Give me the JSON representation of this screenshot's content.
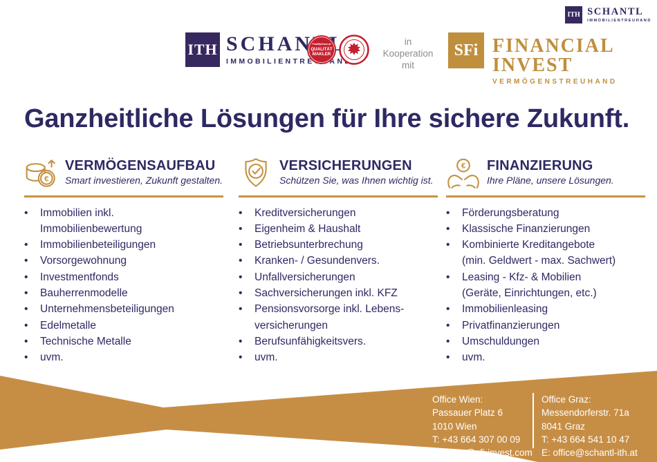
{
  "brand": {
    "ith_monogram": "ITH",
    "schantl_name": "SCHANTL",
    "schantl_sub": "IMMOBILIENTREUHAND",
    "cooperation_line1": "in",
    "cooperation_line2": "Kooperation",
    "cooperation_line3": "mit",
    "sfi_monogram": "SFi",
    "sfi_name": "FINANCIAL INVEST",
    "sfi_sub": "VERMÖGENSTREUHAND"
  },
  "badges": {
    "quality_line1": "FindMyHome.at",
    "quality_line2": "QUALITÄT",
    "quality_line3": "MAKLER"
  },
  "title": "Ganzheitliche Lösungen für Ihre sichere Zukunft.",
  "icons": {
    "euro": "€"
  },
  "columns": [
    {
      "title": "VERMÖGENSAUFBAU",
      "subtitle": "Smart investieren, Zukunft gestalten.",
      "icon": "coins-growth-icon",
      "items": [
        "Immobilien inkl.\nImmobilienbewertung",
        "Immobilienbeteiligungen",
        "Vorsorgewohnung",
        "Investmentfonds",
        "Bauherrenmodelle",
        "Unternehmensbeteiligungen",
        "Edelmetalle",
        "Technische Metalle",
        "uvm."
      ]
    },
    {
      "title": "VERSICHERUNGEN",
      "subtitle": "Schützen Sie, was Ihnen wichtig ist.",
      "icon": "shield-check-icon",
      "items": [
        "Kreditversicherungen",
        "Eigenheim & Haushalt",
        "Betriebsunterbrechung",
        "Kranken- / Gesundenvers.",
        "Unfallversicherungen",
        "Sachversicherungen inkl. KFZ",
        "Pensionsvorsorge inkl. Lebens-\nversicherungen",
        "Berufsunfähigkeitsvers.",
        "uvm."
      ]
    },
    {
      "title": "FINANZIERUNG",
      "subtitle": "Ihre Pläne, unsere Lösungen.",
      "icon": "hands-euro-icon",
      "items": [
        "Förderungsberatung",
        "Klassische Finanzierungen",
        "Kombinierte Kreditangebote\n(min. Geldwert - max. Sachwert)",
        "Leasing - Kfz- & Mobilien\n(Geräte, Einrichtungen, etc.)",
        "Immobilienleasing",
        "Privatfinanzierungen",
        "Umschuldungen",
        "uvm."
      ]
    }
  ],
  "footer": {
    "offices": [
      {
        "title": "Office Wien:",
        "lines": [
          "Passauer Platz 6",
          "1010 Wien",
          "T: +43 664 307 00 09",
          "E: office@sfi-invest.com"
        ]
      },
      {
        "title": "Office Graz:",
        "lines": [
          "Messendorferstr. 71a",
          "8041 Graz",
          "T: +43 664 541 10 47",
          "E: office@schantl-ith.at"
        ]
      }
    ]
  },
  "colors": {
    "navy": "#2d2963",
    "logo_purple": "#37295f",
    "gold": "#bf8f3e",
    "rule_gold": "#c79440",
    "footer_gold": "#c68e45",
    "badge_red": "#c5202f",
    "gray": "#8d8d8d"
  }
}
